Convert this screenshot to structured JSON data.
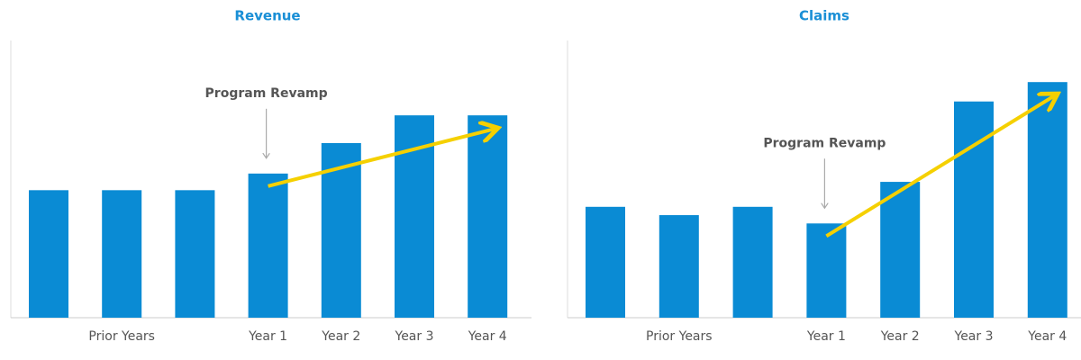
{
  "chart_data": [
    {
      "type": "bar",
      "title": "Revenue",
      "categories": [
        null,
        "Prior Years",
        null,
        "Year 1",
        "Year 2",
        "Year 3",
        "Year 4"
      ],
      "values": [
        46,
        46,
        46,
        52,
        63,
        73,
        73
      ],
      "color": "#0a8bd4",
      "ylim": [
        0,
        100
      ],
      "annotation": "Program Revamp"
    },
    {
      "type": "bar",
      "title": "Claims",
      "categories": [
        null,
        "Prior Years",
        null,
        "Year 1",
        "Year 2",
        "Year 3",
        "Year 4"
      ],
      "values": [
        40,
        37,
        40,
        34,
        49,
        78,
        85
      ],
      "color": "#0a8bd4",
      "ylim": [
        0,
        100
      ],
      "annotation": "Program Revamp"
    }
  ]
}
